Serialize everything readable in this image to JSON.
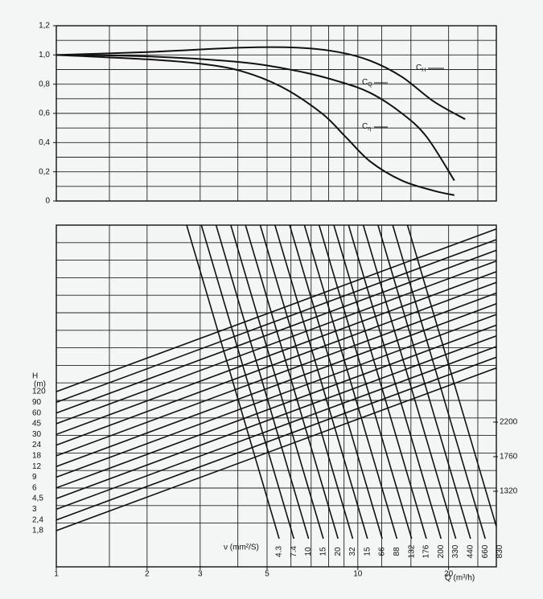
{
  "chart_data": [
    {
      "type": "line",
      "xlim": [
        1,
        28.8
      ],
      "xgrid": [
        1,
        1.5,
        2,
        3,
        4,
        5,
        6,
        7,
        8,
        9,
        10,
        12,
        15,
        20,
        25
      ],
      "ylim": [
        0,
        1.2
      ],
      "yticks": [
        0,
        {
          "value": 0.2,
          "label": "0,2"
        },
        {
          "value": 0.4,
          "label": "0,4"
        },
        {
          "value": 0.6,
          "label": "0,6"
        },
        {
          "value": 0.8,
          "label": "0,8"
        },
        {
          "value": 1,
          "label": "1,0"
        },
        {
          "value": 1.2,
          "label": "1,2"
        }
      ],
      "ygrid": [
        0,
        0.1,
        0.2,
        0.3,
        0.4,
        0.5,
        0.6,
        0.7,
        0.8,
        0.9,
        1,
        1.1,
        1.2
      ],
      "color": "#111111",
      "series": [
        {
          "name": "C",
          "subscript": "H",
          "x": [
            1,
            2,
            4.1,
            6.3,
            8.6,
            11,
            14,
            17.9,
            22.7
          ],
          "values": [
            1,
            1.02,
            1.05,
            1.05,
            1.02,
            0.96,
            0.85,
            0.68,
            0.56
          ]
        },
        {
          "name": "C",
          "subscript": "Q",
          "x": [
            1,
            2,
            4.1,
            6.3,
            8.6,
            11,
            14,
            16.9,
            20.9
          ],
          "values": [
            1,
            0.99,
            0.95,
            0.89,
            0.82,
            0.74,
            0.6,
            0.44,
            0.14
          ]
        },
        {
          "name": "C",
          "subscript": "η",
          "x": [
            1,
            2,
            3,
            4.1,
            5.6,
            7.6,
            9.1,
            11,
            14,
            17.9,
            20.9
          ],
          "values": [
            1,
            0.97,
            0.94,
            0.89,
            0.78,
            0.6,
            0.44,
            0.27,
            0.14,
            0.07,
            0.04
          ]
        }
      ]
    },
    {
      "type": "nomogram",
      "xlim": [
        1,
        28.8
      ],
      "xgrid": [
        1,
        1.5,
        2,
        3,
        4,
        5,
        6,
        7,
        8,
        9,
        10,
        12,
        15,
        20,
        25
      ],
      "xticks": [
        1,
        2,
        3,
        5,
        10,
        20
      ],
      "xlabel": "Q (m³/h)",
      "h_label": "H",
      "h_unit": "(m)",
      "h_values": [
        {
          "value": 1.8,
          "label": "1,8"
        },
        {
          "value": 2.4,
          "label": "2,4"
        },
        3,
        {
          "value": 4.5,
          "label": "4,5"
        },
        6,
        9,
        12,
        18,
        24,
        30,
        45,
        60,
        90,
        120
      ],
      "nu_label": "ν (mm²/S)",
      "nu_values": [
        4.3,
        7.4,
        10,
        15,
        20,
        32,
        15,
        66,
        88,
        132,
        176,
        200,
        330,
        440,
        660,
        830
      ],
      "right_values": [
        2200,
        1760,
        1320
      ]
    }
  ]
}
